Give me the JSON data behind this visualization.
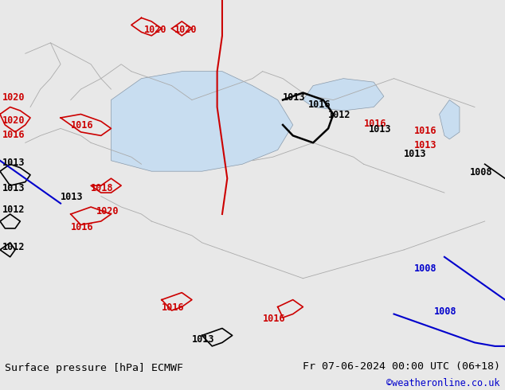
{
  "title_left": "Surface pressure [hPa] ECMWF",
  "title_right": "Fr 07-06-2024 00:00 UTC (06+18)",
  "copyright": "©weatheronline.co.uk",
  "bg_color": "#b0e090",
  "map_bg": "#90d070",
  "sea_color": "#d0e8f0",
  "border_color": "#aaaaaa",
  "text_color_black": "#000000",
  "text_color_blue": "#0000cc",
  "text_color_red": "#cc0000",
  "figsize": [
    6.34,
    4.9
  ],
  "dpi": 100,
  "bottom_bar_color": "#e8e8e8",
  "bottom_bar_height": 0.085,
  "font_size_title": 9.5,
  "font_size_copyright": 8.5
}
